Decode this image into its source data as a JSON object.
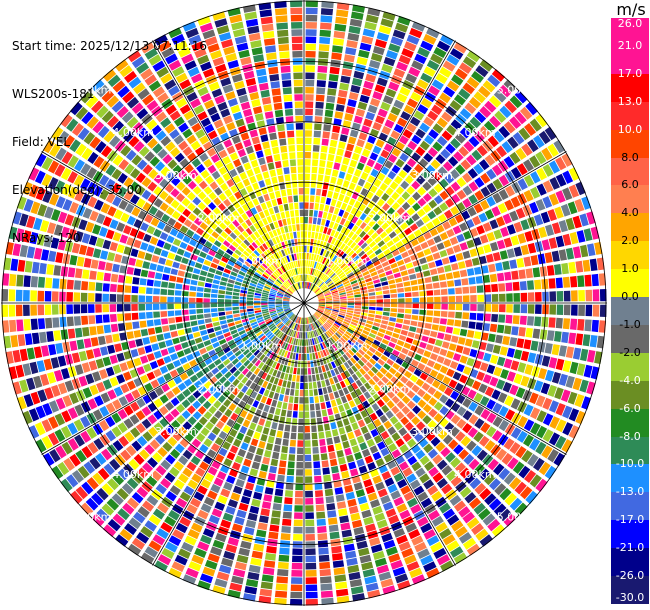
{
  "info": {
    "start_time": "Start time: 2025/12/13 07:11:16",
    "instrument": "WLS200s-181",
    "field": "Field: VEL",
    "elevation": "Elevation(deg): 35.00",
    "nrays": "NRays: 120"
  },
  "chart_data": {
    "type": "heatmap",
    "projection": "polar-ppi",
    "field": "VEL",
    "n_rays": 120,
    "range_rings_km": [
      1.0,
      2.0,
      3.0,
      4.0,
      5.0
    ],
    "ring_labels": [
      "1.00km",
      "2.00km",
      "3.00km",
      "4.00km",
      "5.00km"
    ],
    "colorbar": {
      "unit": "m/s",
      "ticks": [
        "26.0",
        "21.0",
        "17.0",
        "13.0",
        "10.0",
        "8.0",
        "6.0",
        "4.0",
        "2.0",
        "1.0",
        "0.0",
        "-1.0",
        "-2.0",
        "-4.0",
        "-6.0",
        "-8.0",
        "-10.0",
        "-13.0",
        "-17.0",
        "-21.0",
        "-26.0",
        "-30.0"
      ],
      "colors": [
        "#ff1493",
        "#ff1493",
        "#ff0000",
        "#ff2a2a",
        "#ff4500",
        "#ff6347",
        "#ff7f50",
        "#ffa500",
        "#ffd700",
        "#ffff00",
        "#708090",
        "#696969",
        "#9acd32",
        "#6b8e23",
        "#228b22",
        "#2e8b57",
        "#1e90ff",
        "#4169e1",
        "#0000ff",
        "#00008b",
        "#191970"
      ]
    }
  }
}
